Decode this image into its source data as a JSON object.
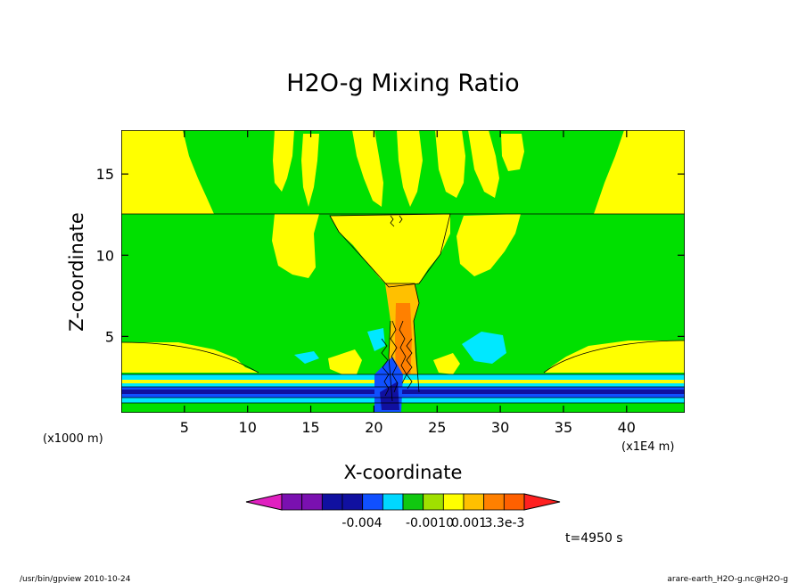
{
  "chart_data": {
    "type": "heatmap",
    "title": "H2O-g Mixing Ratio",
    "xlabel": "X-coordinate",
    "ylabel": "Z-coordinate",
    "x_unit_left": "(x1000 m)",
    "x_unit_right": "(x1E4 m)",
    "xlim": [
      0,
      44.6
    ],
    "ylim": [
      0.3,
      17.7
    ],
    "x_ticks": [
      5,
      10,
      15,
      20,
      25,
      30,
      35,
      40
    ],
    "x_tick_labels": [
      "5",
      "10",
      "15",
      "20",
      "25",
      "30",
      "35",
      "40"
    ],
    "y_ticks": [
      5,
      10,
      15
    ],
    "y_tick_labels": [
      "5",
      "10",
      "15"
    ],
    "time_label": "t=4950 s",
    "colorbar": {
      "colors": [
        "#e020c0",
        "#7a10b0",
        "#7a10b0",
        "#1010a0",
        "#1010a0",
        "#1050ff",
        "#00d8ff",
        "#10c810",
        "#a0e000",
        "#ffff00",
        "#ffc000",
        "#ff8000",
        "#ff6000",
        "#ff2020"
      ],
      "labels": [
        "-0.004",
        "-0.0010",
        "0.001",
        "3.3e-3"
      ]
    },
    "fields": [
      {
        "name": "background",
        "color": "#00e000"
      },
      {
        "name": "yellow-upper-left",
        "color": "#ffff00"
      },
      {
        "name": "yellow-upper-right",
        "color": "#ffff00"
      },
      {
        "name": "yellow-anvil",
        "color": "#ffff00"
      },
      {
        "name": "yellow-lower-bands",
        "color": "#ffff00"
      },
      {
        "name": "orange-core",
        "color": "#ffc000"
      },
      {
        "name": "dark-orange-core",
        "color": "#ff8000"
      },
      {
        "name": "cyan-blobs",
        "color": "#00e8ff"
      },
      {
        "name": "blue-surface-layer",
        "color": "#1050ff"
      },
      {
        "name": "navy-surface-layer",
        "color": "#1010a0"
      }
    ]
  },
  "footer": {
    "left": "/usr/bin/gpview  2010-10-24",
    "right": "arare-earth_H2O-g.nc@H2O-g"
  }
}
